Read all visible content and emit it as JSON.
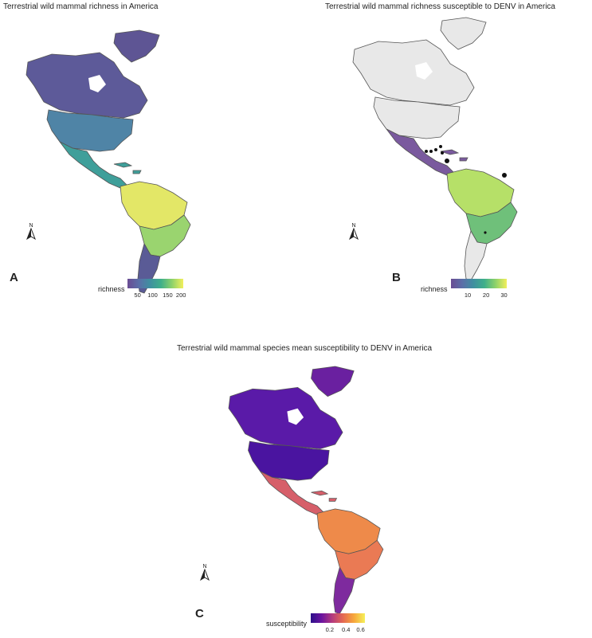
{
  "panels": [
    {
      "id": "A",
      "title": "Terrestrial wild mammal richness in America",
      "label": "A",
      "legend": {
        "name": "richness",
        "ticks": [
          "50",
          "100",
          "150",
          "200"
        ],
        "colors": [
          "#6a4c93",
          "#5b6ea8",
          "#3f8fa0",
          "#3faf8a",
          "#8fd26a",
          "#f2ef5c"
        ]
      },
      "fills": {
        "canada": "#5d5a99",
        "greenland": "#5e5594",
        "usa": "#4f84a6",
        "mexico": "#3f9f9a",
        "amazon": "#e3e767",
        "south": "#9ad46f",
        "patagonia": "#5a5b96"
      }
    },
    {
      "id": "B",
      "title": "Terrestrial wild mammal richness susceptible to DENV in America",
      "label": "B",
      "legend": {
        "name": "richness",
        "ticks": [
          "10",
          "20",
          "30"
        ],
        "colors": [
          "#6a4c93",
          "#5b6ea8",
          "#3f8fa0",
          "#3faf8a",
          "#8fd26a",
          "#f2ef5c"
        ]
      },
      "fills": {
        "canada": "#e8e8e8",
        "greenland": "#e8e8e8",
        "usa": "#e8e8e8",
        "mexico": "#7a5a9e",
        "amazon": "#b6e068",
        "south": "#6fc07a",
        "patagonia": "#e8e8e8"
      }
    },
    {
      "id": "C",
      "title": "Terrestrial wild mammal species mean susceptibility to DENV in America",
      "label": "C",
      "legend": {
        "name": "susceptibility",
        "ticks": [
          "0.2",
          "0.4",
          "0.6"
        ],
        "colors": [
          "#2c0f8a",
          "#6b14a0",
          "#b63b7c",
          "#e56b52",
          "#f7a83c",
          "#f5f05a"
        ]
      },
      "fills": {
        "canada": "#5a1aa8",
        "greenland": "#6a20a0",
        "usa": "#4a14a0",
        "mexico": "#d65f6a",
        "amazon": "#ee8a4a",
        "south": "#ea7a54",
        "patagonia": "#7e2a9e"
      }
    }
  ],
  "north_arrow": {
    "label": "N"
  }
}
